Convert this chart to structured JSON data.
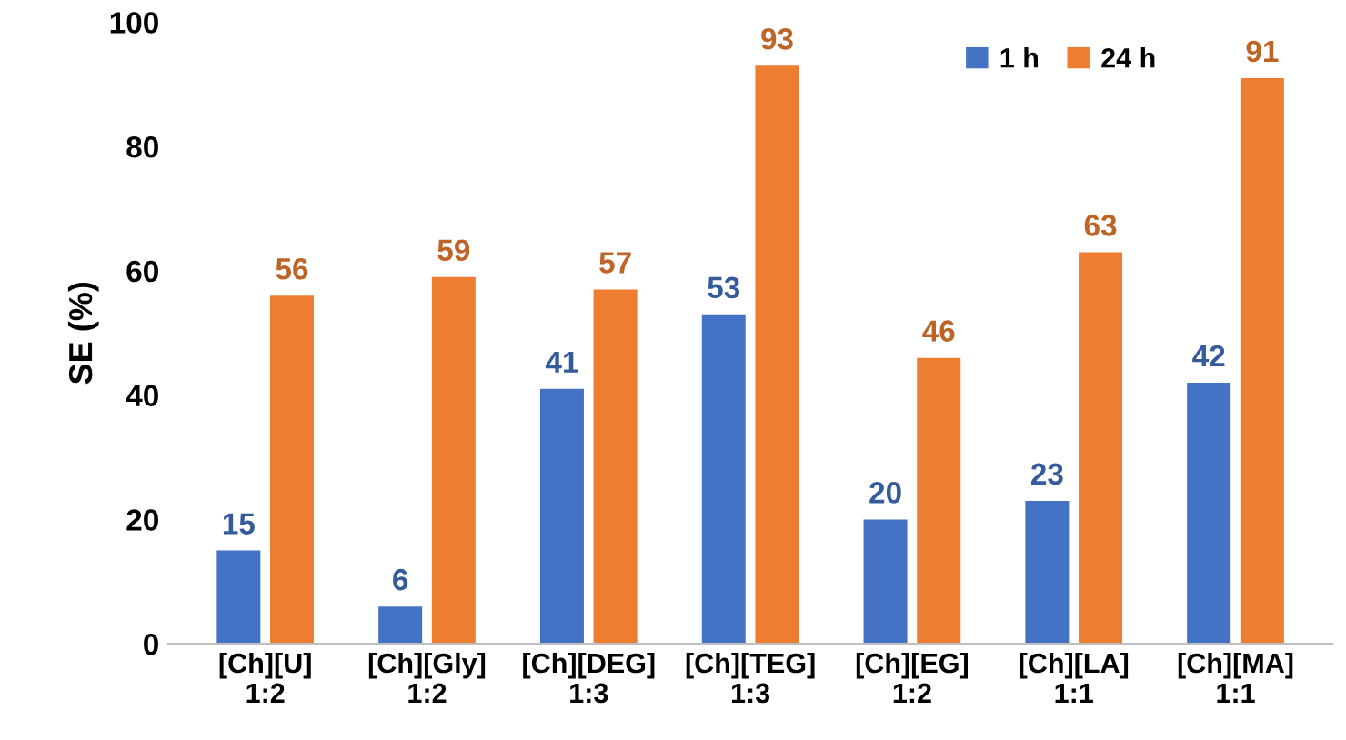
{
  "chart_data": {
    "type": "bar",
    "ylabel": "SE (%)",
    "categories": [
      "[Ch][U]\n1:2",
      "[Ch][Gly]\n1:2",
      "[Ch][DEG]\n1:3",
      "[Ch][TEG]\n1:3",
      "[Ch][EG]\n1:2",
      "[Ch][LA]\n1:1",
      "[Ch][MA]\n1:1"
    ],
    "series": [
      {
        "name": "1 h",
        "color": "#4472c4",
        "values": [
          15,
          6,
          41,
          53,
          20,
          23,
          42
        ]
      },
      {
        "name": "24 h",
        "color": "#ed7d31",
        "values": [
          56,
          59,
          57,
          93,
          46,
          63,
          91
        ]
      }
    ],
    "ylim": [
      0,
      100
    ],
    "yticks": [
      0,
      20,
      40,
      60,
      80,
      100
    ],
    "grid": false,
    "legend": "top right",
    "data_labels": true
  }
}
